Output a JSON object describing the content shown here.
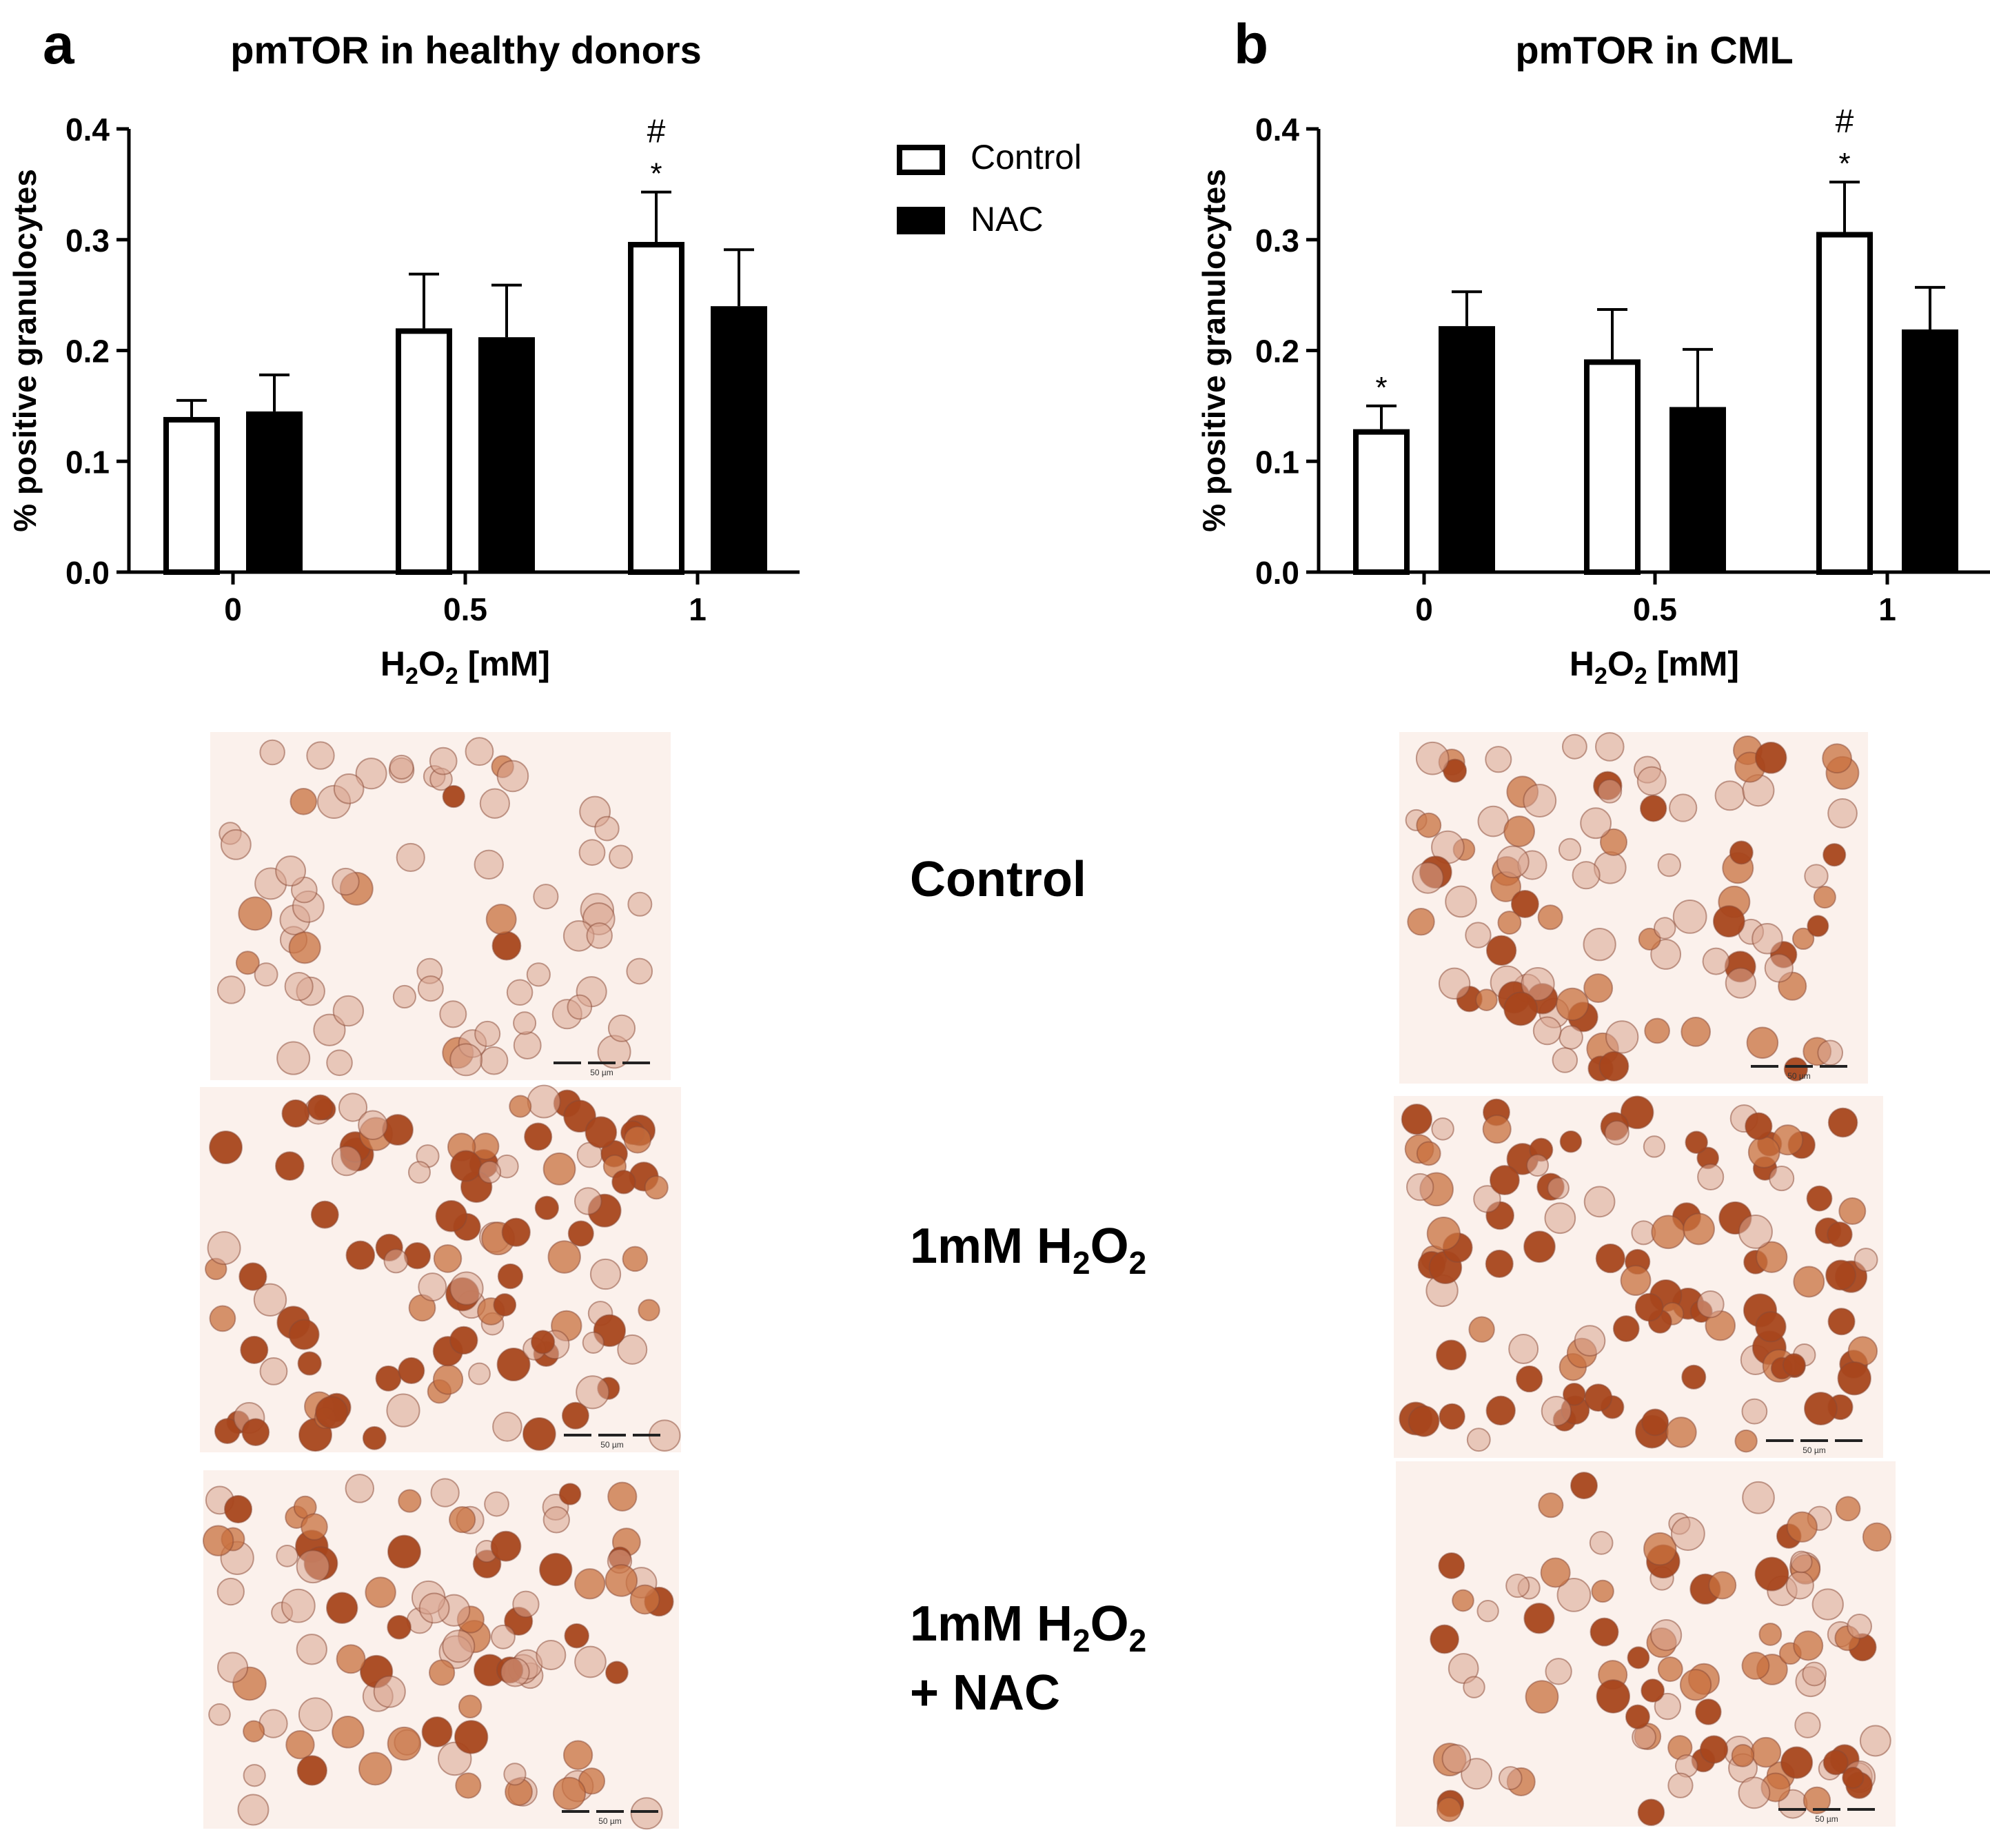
{
  "colors": {
    "control_fill": "#ffffff",
    "nac_fill": "#000000",
    "axis": "#000000",
    "stain_bg": "#fbf1ec",
    "stain_dark": "#a8461c",
    "stain_mid": "#c8703f",
    "stain_light": "#d9a48f"
  },
  "legend": {
    "items": [
      {
        "name": "Control",
        "icon": "open-square-icon"
      },
      {
        "name": "NAC",
        "icon": "filled-square-icon"
      }
    ]
  },
  "chart_data": [
    {
      "panel": "a",
      "type": "bar",
      "title": "pmTOR in healthy donors",
      "xlabel": "H2O2 [mM]",
      "xlabel_main": "H",
      "xlabel_sub1": "2",
      "xlabel_mid": "O",
      "xlabel_sub2": "2",
      "xlabel_tail": " [mM]",
      "ylabel": "% positive granulocytes",
      "ylim": [
        0,
        0.4
      ],
      "yticks": [
        "0.0",
        "0.1",
        "0.2",
        "0.3",
        "0.4"
      ],
      "categories": [
        "0",
        "0.5",
        "1"
      ],
      "series": [
        {
          "name": "Control",
          "values": [
            0.14,
            0.22,
            0.298
          ],
          "errors": [
            0.015,
            0.049,
            0.045
          ]
        },
        {
          "name": "NAC",
          "values": [
            0.145,
            0.212,
            0.24
          ],
          "errors": [
            0.033,
            0.047,
            0.051
          ]
        }
      ],
      "annotations": [
        {
          "category": "1",
          "series": "Control",
          "symbols": [
            "#",
            "*"
          ]
        }
      ]
    },
    {
      "panel": "b",
      "type": "bar",
      "title": "pmTOR in CML",
      "xlabel": "H2O2 [mM]",
      "xlabel_main": "H",
      "xlabel_sub1": "2",
      "xlabel_mid": "O",
      "xlabel_sub2": "2",
      "xlabel_tail": " [mM]",
      "ylabel": "% positive granulocytes",
      "ylim": [
        0,
        0.4
      ],
      "yticks": [
        "0.0",
        "0.1",
        "0.2",
        "0.3",
        "0.4"
      ],
      "categories": [
        "0",
        "0.5",
        "1"
      ],
      "series": [
        {
          "name": "Control",
          "values": [
            0.129,
            0.192,
            0.307
          ],
          "errors": [
            0.021,
            0.045,
            0.045
          ]
        },
        {
          "name": "NAC",
          "values": [
            0.222,
            0.149,
            0.219
          ],
          "errors": [
            0.031,
            0.052,
            0.038
          ]
        }
      ],
      "annotations": [
        {
          "category": "0",
          "series": "Control",
          "symbols": [
            "*"
          ]
        },
        {
          "category": "1",
          "series": "Control",
          "symbols": [
            "#",
            "*"
          ]
        }
      ]
    }
  ],
  "row_labels": {
    "control": "Control",
    "h2o2_prefix": "1mM H",
    "h2o2_sub1": "2",
    "h2o2_mid": "O",
    "h2o2_sub2": "2",
    "nac_line": "+ NAC"
  },
  "micrographs": [
    {
      "panel": "a",
      "condition": "Control",
      "density": "low",
      "scale_bar": "50 µm"
    },
    {
      "panel": "a",
      "condition": "1mM H2O2",
      "density": "high",
      "scale_bar": "50 µm"
    },
    {
      "panel": "a",
      "condition": "1mM H2O2 + NAC",
      "density": "medium",
      "scale_bar": "50 µm"
    },
    {
      "panel": "b",
      "condition": "Control",
      "density": "medium",
      "scale_bar": "50 µm"
    },
    {
      "panel": "b",
      "condition": "1mM H2O2",
      "density": "high",
      "scale_bar": "50 µm"
    },
    {
      "panel": "b",
      "condition": "1mM H2O2 + NAC",
      "density": "medium",
      "scale_bar": "50 µm"
    }
  ]
}
